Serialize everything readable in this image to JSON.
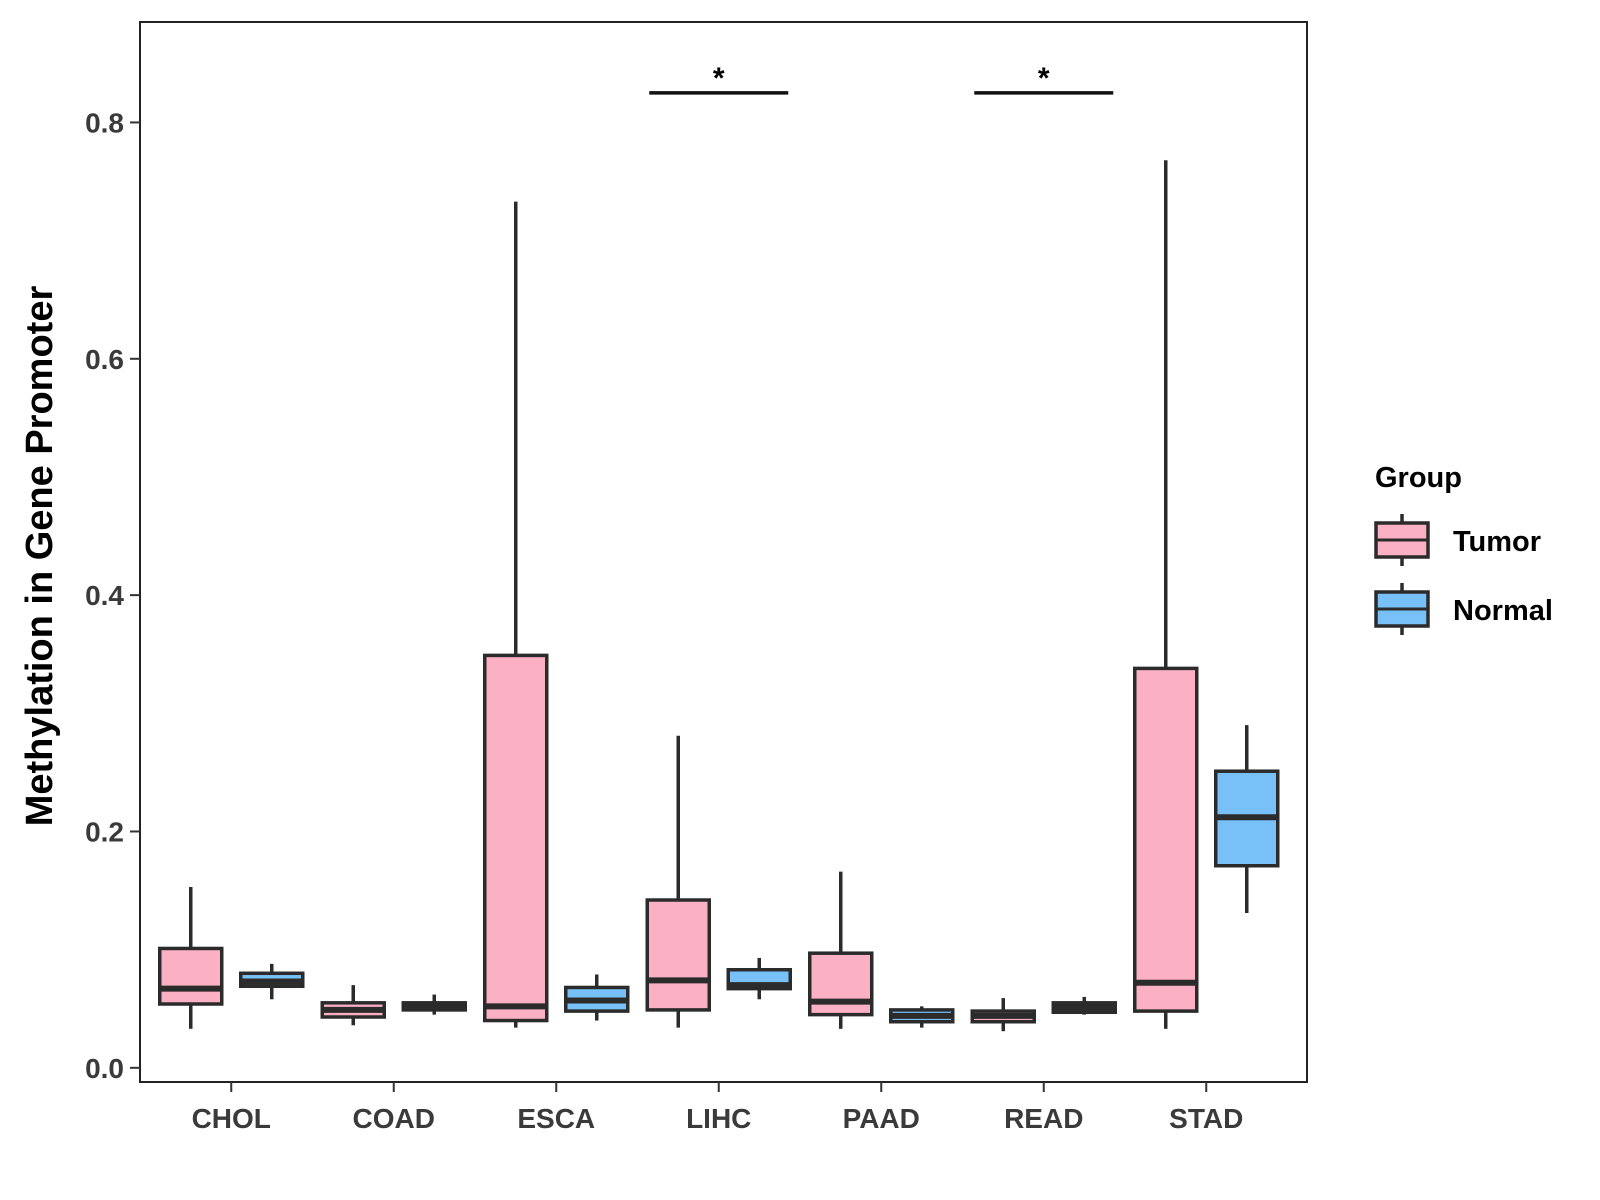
{
  "chart_data": {
    "type": "boxplot",
    "title": "",
    "xlabel": "",
    "ylabel": "Methylation in Gene Promoter",
    "ylim": [
      -0.012,
      0.885
    ],
    "yticks": [
      0.0,
      0.2,
      0.4,
      0.6,
      0.8
    ],
    "ytick_labels": [
      "0.0",
      "0.2",
      "0.4",
      "0.6",
      "0.8"
    ],
    "categories": [
      "CHOL",
      "COAD",
      "ESCA",
      "LIHC",
      "PAAD",
      "READ",
      "STAD"
    ],
    "legend": {
      "title": "Group",
      "position": "right",
      "entries": [
        {
          "name": "Tumor",
          "color": "#FBB0C3"
        },
        {
          "name": "Normal",
          "color": "#77C0F8"
        }
      ]
    },
    "series": [
      {
        "name": "Tumor",
        "color": "#FBB0C3",
        "boxes": [
          {
            "category": "CHOL",
            "min": 0.033,
            "q1": 0.054,
            "median": 0.067,
            "q3": 0.101,
            "max": 0.153
          },
          {
            "category": "COAD",
            "min": 0.036,
            "q1": 0.043,
            "median": 0.049,
            "q3": 0.055,
            "max": 0.07
          },
          {
            "category": "ESCA",
            "min": 0.034,
            "q1": 0.04,
            "median": 0.052,
            "q3": 0.349,
            "max": 0.733
          },
          {
            "category": "LIHC",
            "min": 0.034,
            "q1": 0.049,
            "median": 0.074,
            "q3": 0.142,
            "max": 0.281
          },
          {
            "category": "PAAD",
            "min": 0.033,
            "q1": 0.045,
            "median": 0.056,
            "q3": 0.097,
            "max": 0.166
          },
          {
            "category": "READ",
            "min": 0.031,
            "q1": 0.039,
            "median": 0.044,
            "q3": 0.048,
            "max": 0.059
          },
          {
            "category": "STAD",
            "min": 0.033,
            "q1": 0.048,
            "median": 0.072,
            "q3": 0.338,
            "max": 0.768
          }
        ]
      },
      {
        "name": "Normal",
        "color": "#77C0F8",
        "boxes": [
          {
            "category": "CHOL",
            "min": 0.058,
            "q1": 0.069,
            "median": 0.073,
            "q3": 0.08,
            "max": 0.088
          },
          {
            "category": "COAD",
            "min": 0.045,
            "q1": 0.049,
            "median": 0.052,
            "q3": 0.055,
            "max": 0.062
          },
          {
            "category": "ESCA",
            "min": 0.04,
            "q1": 0.048,
            "median": 0.057,
            "q3": 0.068,
            "max": 0.079
          },
          {
            "category": "LIHC",
            "min": 0.058,
            "q1": 0.067,
            "median": 0.07,
            "q3": 0.083,
            "max": 0.093
          },
          {
            "category": "PAAD",
            "min": 0.034,
            "q1": 0.039,
            "median": 0.044,
            "q3": 0.049,
            "max": 0.052
          },
          {
            "category": "READ",
            "min": 0.045,
            "q1": 0.047,
            "median": 0.051,
            "q3": 0.055,
            "max": 0.06
          },
          {
            "category": "STAD",
            "min": 0.131,
            "q1": 0.171,
            "median": 0.212,
            "q3": 0.251,
            "max": 0.29
          }
        ]
      }
    ],
    "annotations": [
      {
        "category": "LIHC",
        "label": "*",
        "y": 0.825
      },
      {
        "category": "READ",
        "label": "*",
        "y": 0.825
      }
    ]
  }
}
